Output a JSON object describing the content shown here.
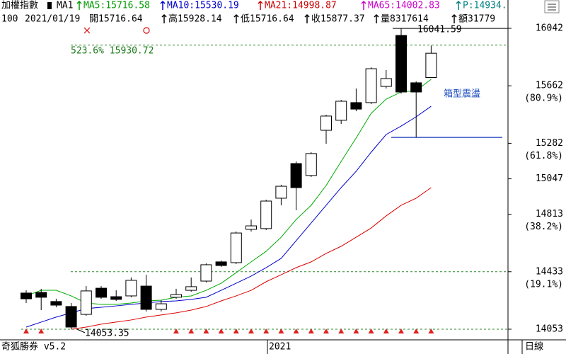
{
  "header": {
    "line1": [
      {
        "text": "加權指數",
        "color": "#000000"
      },
      {
        "text": "MA1",
        "color": "#000000"
      },
      {
        "text": "MA5:15716.58",
        "color": "#009900"
      },
      {
        "text": "MA10:15530.19",
        "color": "#0000cc"
      },
      {
        "text": "MA21:14998.87",
        "color": "#cc0000"
      },
      {
        "text": "MA65:14002.83",
        "color": "#cc00cc"
      },
      {
        "text": "P:14934.",
        "color": "#008080"
      }
    ],
    "line2": [
      "100",
      "2021/01/19",
      "開15716.64",
      "高15928.14",
      "低15716.64",
      "收15877.37",
      "量8317614",
      "額31779"
    ]
  },
  "footer": {
    "brand": "奇狐勝券 v5.2",
    "period": "日線"
  },
  "chart_data": {
    "type": "candlestick",
    "x_label": "2021",
    "ohlc": {
      "open": [
        14292,
        14296,
        14236,
        14203,
        14151,
        14324,
        14268,
        14273,
        14338,
        14184,
        14264,
        14310,
        14371,
        14498,
        14493,
        14713,
        14718,
        14919,
        15148,
        15069,
        15368,
        15434,
        15551,
        15551,
        15658,
        15995,
        15682,
        15716.64
      ],
      "high": [
        14310,
        14320,
        14254,
        14226,
        14338,
        14338,
        14310,
        14395,
        14413,
        14245,
        14320,
        14395,
        14488,
        14507,
        14699,
        14778,
        14909,
        15008,
        15162,
        15223,
        15471,
        15569,
        15644,
        15785,
        15766,
        16041.59,
        15691,
        15928.14
      ],
      "low": [
        14226,
        14179,
        14198,
        14053.35,
        14142,
        14254,
        14240,
        14264,
        14170,
        14170,
        14254,
        14301,
        14362,
        14465,
        14484,
        14699,
        14708,
        14872,
        14839,
        15059,
        15279,
        15410,
        15494,
        15541,
        15644,
        15611,
        15321,
        15716.64
      ],
      "close": [
        14254,
        14264,
        14212,
        14067,
        14306,
        14264,
        14250,
        14376,
        14184,
        14221,
        14282,
        14334,
        14479,
        14474,
        14689,
        14736,
        14900,
        14998,
        14989,
        15214,
        15462,
        15560,
        15508,
        15775,
        15710,
        15621,
        15621,
        15877.37
      ]
    },
    "up_color": "#ffffff",
    "down_color": "#000000",
    "series": [
      {
        "name": "MA5",
        "color": "#00aa00",
        "values": [
          14273,
          14310,
          14310,
          14273,
          14226,
          14217,
          14217,
          14226,
          14240,
          14245,
          14264,
          14273,
          14310,
          14357,
          14427,
          14498,
          14568,
          14661,
          14778,
          14872,
          15003,
          15162,
          15317,
          15480,
          15574,
          15621,
          15630,
          15705
        ]
      },
      {
        "name": "MA10",
        "color": "#0000cc",
        "values": [
          14067,
          14100,
          14133,
          14161,
          14189,
          14198,
          14207,
          14217,
          14226,
          14236,
          14240,
          14250,
          14264,
          14310,
          14357,
          14404,
          14460,
          14521,
          14638,
          14755,
          14872,
          14989,
          15097,
          15223,
          15340,
          15396,
          15457,
          15527
        ]
      },
      {
        "name": "MA21",
        "color": "#dd0000",
        "values": [
          null,
          null,
          null,
          14053,
          14067,
          14086,
          14100,
          14114,
          14133,
          14147,
          14161,
          14179,
          14203,
          14240,
          14273,
          14310,
          14367,
          14413,
          14460,
          14498,
          14554,
          14601,
          14661,
          14722,
          14802,
          14872,
          14919,
          14989
        ]
      }
    ],
    "ylim": [
      13992,
      16145
    ],
    "yticks": [
      16042,
      15662,
      15282,
      15047,
      14813,
      14433,
      14053
    ],
    "fib_labels": [
      {
        "value": 15662,
        "label": "(80.9%)"
      },
      {
        "value": 15282,
        "label": "(61.8%)"
      },
      {
        "value": 14813,
        "label": "(38.2%)"
      },
      {
        "value": 14433,
        "label": "(19.1%)"
      }
    ],
    "dashed_levels": [
      {
        "value": 15930.72,
        "label": "523.6% 15930.72"
      },
      14433,
      14053
    ],
    "box_low": 15321,
    "box_label": "箱型震盪"
  }
}
